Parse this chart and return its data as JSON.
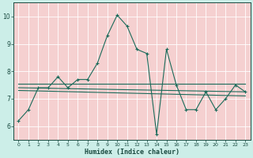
{
  "title": "",
  "xlabel": "Humidex (Indice chaleur)",
  "background_color": "#cceee8",
  "plot_bg_color": "#f5d0d0",
  "grid_color": "#ffffff",
  "line_color": "#1a6b5a",
  "series1": {
    "x": [
      0,
      1,
      2,
      3,
      4,
      5,
      6,
      7,
      8,
      9,
      10,
      11,
      12,
      13,
      14,
      15,
      16,
      17,
      18,
      19,
      20,
      21,
      22,
      23
    ],
    "y": [
      6.2,
      6.6,
      7.4,
      7.4,
      7.8,
      7.4,
      7.7,
      7.7,
      8.3,
      9.3,
      10.05,
      9.65,
      8.8,
      8.65,
      5.7,
      8.8,
      7.5,
      6.6,
      6.6,
      7.25,
      6.6,
      7.0,
      7.5,
      7.25
    ]
  },
  "series2": {
    "x": [
      0,
      23
    ],
    "y": [
      7.55,
      7.55
    ]
  },
  "series3": {
    "x": [
      0,
      23
    ],
    "y": [
      7.4,
      7.25
    ]
  },
  "series4": {
    "x": [
      0,
      23
    ],
    "y": [
      7.3,
      7.1
    ]
  },
  "ylim": [
    5.5,
    10.5
  ],
  "xlim": [
    -0.5,
    23.5
  ],
  "yticks": [
    6,
    7,
    8,
    9,
    10
  ],
  "xticks": [
    0,
    1,
    2,
    3,
    4,
    5,
    6,
    7,
    8,
    9,
    10,
    11,
    12,
    13,
    14,
    15,
    16,
    17,
    18,
    19,
    20,
    21,
    22,
    23
  ]
}
